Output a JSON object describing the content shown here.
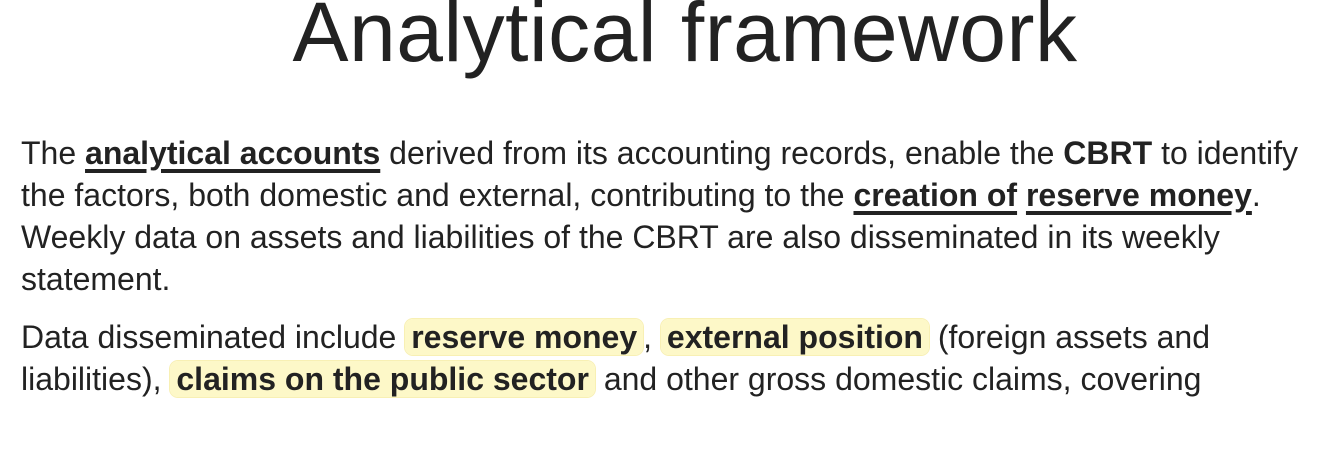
{
  "title": "Analytical framework",
  "paragraph1": {
    "t1": "The ",
    "link1": "analytical accounts",
    "t2": " derived from its accounting records, enable the ",
    "cbrt": "CBRT",
    "t3": " to identify the factors, both domestic and external, contributing to the ",
    "link2": "creation of",
    "t4": " ",
    "link3": "reserve money",
    "t5": ". Weekly data on assets and liabilities of the CBRT are also disseminated in its weekly statement."
  },
  "paragraph2": {
    "t1": "Data disseminated include ",
    "hl1": "reserve money",
    "t2": ", ",
    "hl2": "external position",
    "t3": " (foreign assets and liabilities), ",
    "hl3": "claims on the public sector",
    "t4": " and other gross domestic claims, covering"
  }
}
